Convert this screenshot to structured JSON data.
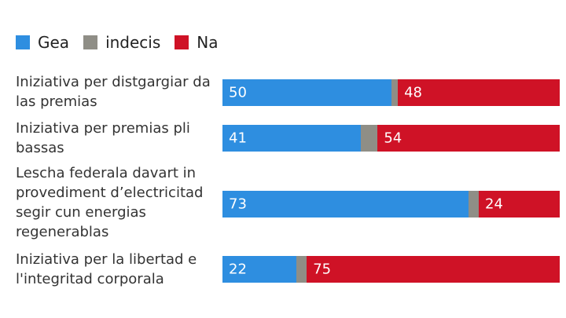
{
  "chart_data": {
    "type": "bar",
    "orientation": "horizontal",
    "stacked": true,
    "categories": [
      "Iniziativa per distgargiar da las premias",
      "Iniziativa per premias pli bassas",
      "Lescha federala davart in provediment d’electricitad segir cun energias regenerablas",
      "Iniziativa per la libertad e l'integritad corporala"
    ],
    "series": [
      {
        "name": "Gea",
        "color": "#2e8ee0",
        "values": [
          50,
          41,
          73,
          22
        ]
      },
      {
        "name": "indecis",
        "color": "#8f8e86",
        "values": [
          2,
          5,
          3,
          3
        ]
      },
      {
        "name": "Na",
        "color": "#cf1226",
        "values": [
          48,
          54,
          24,
          75
        ]
      }
    ],
    "data_labels": {
      "Gea": [
        "50",
        "41",
        "73",
        "22"
      ],
      "Na": [
        "48",
        "54",
        "24",
        "75"
      ]
    },
    "xlim": [
      0,
      100
    ],
    "legend": "top-left",
    "grid": false
  }
}
